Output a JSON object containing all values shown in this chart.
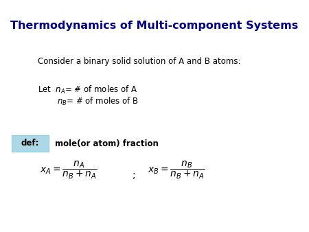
{
  "title": "Thermodynamics of Multi-component Systems",
  "title_color": "#00008B",
  "title_fontsize": 11.5,
  "bg_color": "#ffffff",
  "consider_text": "Consider a binary solid solution of A and B atoms:",
  "let_line1": "Let  $n_{A}$= # of moles of A",
  "let_line2": "$n_{B}$= # of moles of B",
  "def_box_color": "#ADD8E6",
  "def_box_edge": "#87CEEB",
  "def_label": "def:",
  "def_desc": "mole(or atom) fraction",
  "formula_xA": "$x_{A} = \\dfrac{n_{A}}{n_{B} + n_{A}}$",
  "formula_semicolon": ";",
  "formula_xB": "$x_{B} = \\dfrac{n_{B}}{n_{B} + n_{A}}$",
  "text_fontsize": 8.5,
  "formula_fontsize": 10
}
